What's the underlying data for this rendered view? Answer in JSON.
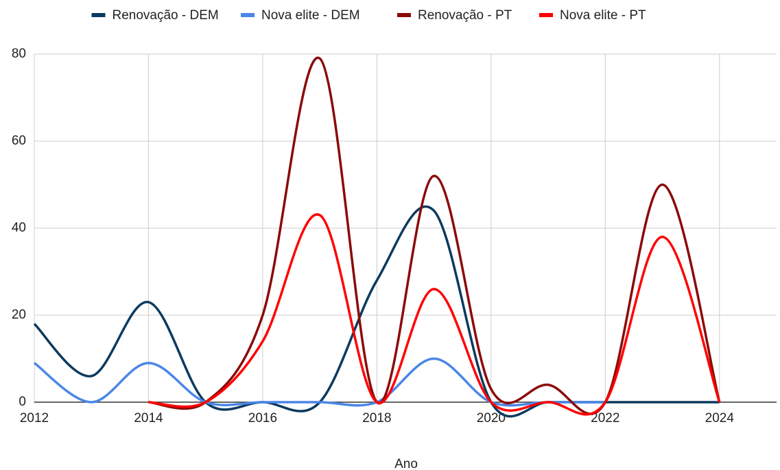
{
  "chart_data": {
    "type": "line",
    "x_label": "Ano",
    "x": [
      2012,
      2013,
      2014,
      2015,
      2016,
      2017,
      2018,
      2019,
      2020,
      2021,
      2022,
      2023,
      2024
    ],
    "series": [
      {
        "name": "Renovação - DEM",
        "color": "#0b3a5f",
        "values": [
          18,
          6,
          23,
          0,
          0,
          0,
          28,
          44,
          0,
          0,
          0,
          0,
          0
        ]
      },
      {
        "name": "Nova elite - DEM",
        "color": "#4a86e8",
        "values": [
          9,
          0,
          9,
          0,
          0,
          0,
          0,
          10,
          0,
          0,
          0,
          null,
          null
        ]
      },
      {
        "name": "Renovação - PT",
        "color": "#8b0a0a",
        "values": [
          null,
          null,
          0,
          0,
          20,
          79,
          0,
          52,
          3,
          4,
          0,
          50,
          0
        ]
      },
      {
        "name": "Nova elite - PT",
        "color": "#ff0000",
        "values": [
          null,
          null,
          0,
          0,
          14,
          43,
          0,
          26,
          0,
          0,
          0,
          38,
          0
        ]
      }
    ],
    "xlim": [
      2012,
      2025
    ],
    "xticks": [
      2012,
      2014,
      2016,
      2018,
      2020,
      2022,
      2024
    ],
    "ylim": [
      0,
      80
    ],
    "yticks": [
      0,
      20,
      40,
      60,
      80
    ],
    "grid": true,
    "legend": "top",
    "smooth": true
  }
}
